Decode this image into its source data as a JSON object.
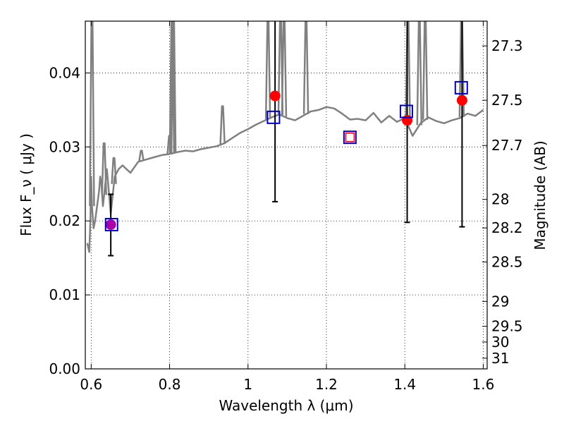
{
  "chart_data": {
    "type": "scatter",
    "xlabel": "Wavelength  λ (μm)",
    "ylabel": "Flux  F_ν  ( μJy )",
    "y2label": "Magnitude (AB)",
    "xlim": [
      0.585,
      1.61
    ],
    "ylim": [
      0.0,
      0.047
    ],
    "x_ticks": [
      "0.6",
      "0.8",
      "1",
      "1.2",
      "1.4",
      "1.6"
    ],
    "x_tick_values": [
      0.6,
      0.8,
      1.0,
      1.2,
      1.4,
      1.6
    ],
    "y_ticks": [
      "0.00",
      "0.01",
      "0.02",
      "0.03",
      "0.04"
    ],
    "y_tick_values": [
      0.0,
      0.01,
      0.02,
      0.03,
      0.04
    ],
    "mag_ticks": [
      "27.3",
      "27.5",
      "27.7",
      "28",
      "28.2",
      "28.5",
      "29",
      "29.5",
      "30",
      "31"
    ],
    "mag_tick_values": [
      27.3,
      27.5,
      27.7,
      28.0,
      28.2,
      28.5,
      29.0,
      29.5,
      30.0,
      31.0
    ],
    "grid": true,
    "colors": {
      "model": "#808080",
      "observed": "#ff0000",
      "model_photometry": "#0000cc",
      "overlap": "#aa00aa",
      "errorbar": "#000000"
    },
    "series": [
      {
        "kind": "model_spectrum",
        "x": [
          0.59,
          0.595,
          0.598,
          0.6,
          0.602,
          0.606,
          0.61,
          0.615,
          0.62,
          0.623,
          0.626,
          0.63,
          0.64,
          0.65,
          0.66,
          0.67,
          0.68,
          0.69,
          0.7,
          0.72,
          0.74,
          0.76,
          0.78,
          0.795,
          0.805,
          0.82,
          0.84,
          0.86,
          0.88,
          0.9,
          0.92,
          0.94,
          0.96,
          0.98,
          1.0,
          1.02,
          1.04,
          1.06,
          1.08,
          1.1,
          1.12,
          1.14,
          1.16,
          1.18,
          1.2,
          1.22,
          1.24,
          1.26,
          1.28,
          1.3,
          1.32,
          1.34,
          1.36,
          1.38,
          1.4,
          1.42,
          1.44,
          1.46,
          1.48,
          1.5,
          1.52,
          1.54,
          1.56,
          1.58,
          1.6
        ],
        "y": [
          0.017,
          0.0158,
          0.02,
          0.026,
          0.022,
          0.019,
          0.02,
          0.022,
          0.024,
          0.026,
          0.025,
          0.022,
          0.027,
          0.021,
          0.026,
          0.027,
          0.0275,
          0.027,
          0.0265,
          0.028,
          0.0283,
          0.0286,
          0.0289,
          0.029,
          0.0291,
          0.0293,
          0.0295,
          0.0294,
          0.0297,
          0.0299,
          0.0301,
          0.0305,
          0.0312,
          0.0319,
          0.0324,
          0.033,
          0.0335,
          0.034,
          0.0344,
          0.0339,
          0.0336,
          0.0342,
          0.0348,
          0.035,
          0.0354,
          0.0352,
          0.0345,
          0.0337,
          0.0338,
          0.0336,
          0.0346,
          0.0333,
          0.0342,
          0.0334,
          0.0339,
          0.0315,
          0.0332,
          0.034,
          0.0335,
          0.0332,
          0.0336,
          0.0339,
          0.0345,
          0.0342,
          0.035
        ]
      },
      {
        "kind": "model_spikes",
        "spikes": [
          {
            "x": 0.602,
            "y": 0.047
          },
          {
            "x": 0.633,
            "y": 0.0305
          },
          {
            "x": 0.658,
            "y": 0.0285
          },
          {
            "x": 0.728,
            "y": 0.0295
          },
          {
            "x": 0.8,
            "y": 0.0315
          },
          {
            "x": 0.806,
            "y": 0.047
          },
          {
            "x": 0.81,
            "y": 0.047
          },
          {
            "x": 0.935,
            "y": 0.0355
          },
          {
            "x": 1.051,
            "y": 0.047
          },
          {
            "x": 1.083,
            "y": 0.047
          },
          {
            "x": 1.092,
            "y": 0.047
          },
          {
            "x": 1.148,
            "y": 0.047
          },
          {
            "x": 1.408,
            "y": 0.047
          },
          {
            "x": 1.437,
            "y": 0.047
          },
          {
            "x": 1.452,
            "y": 0.047
          },
          {
            "x": 1.545,
            "y": 0.047
          }
        ]
      },
      {
        "kind": "observed",
        "x": [
          0.65,
          1.069,
          1.406,
          1.546
        ],
        "y": [
          0.0195,
          0.0369,
          0.0336,
          0.0363
        ],
        "yerr_low": [
          0.0153,
          0.0226,
          0.0198,
          0.0192
        ],
        "yerr_high": [
          0.0236,
          0.047,
          0.047,
          0.047
        ]
      },
      {
        "kind": "model_photometry",
        "x": [
          0.652,
          1.065,
          1.26,
          1.404,
          1.544
        ],
        "y": [
          0.0195,
          0.034,
          0.0313,
          0.0348,
          0.038
        ]
      },
      {
        "kind": "upper_limit",
        "x": [
          1.26
        ],
        "y": [
          0.0313
        ]
      }
    ]
  }
}
